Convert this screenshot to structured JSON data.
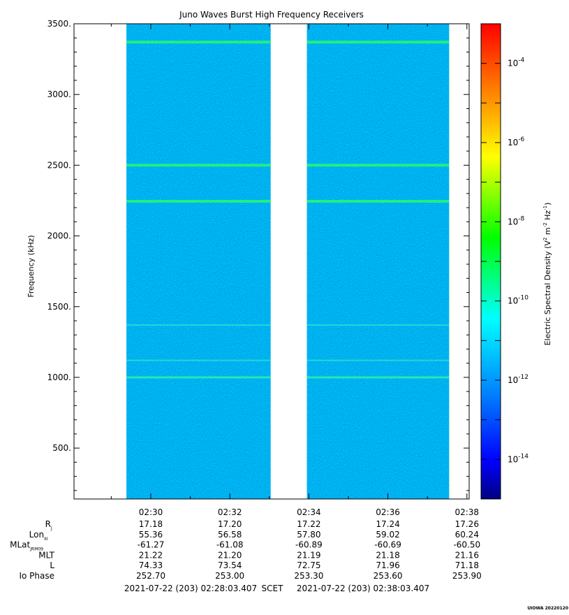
{
  "title": "Juno Waves Burst High Frequency Receivers",
  "watermark": "UIOWA 20220120",
  "chart_data": {
    "type": "heatmap",
    "title": "Juno Waves Burst High Frequency Receivers",
    "ylabel": "Frequency (kHz)",
    "ylim": [
      140,
      3500
    ],
    "y_ticks": [
      "500.",
      "1000.",
      "1500.",
      "2000.",
      "2500.",
      "3000.",
      "3500."
    ],
    "x_range": [
      "02:28:03.407",
      "02:38:03.407"
    ],
    "x_ticks": [
      "02:30",
      "02:32",
      "02:34",
      "02:36",
      "02:38"
    ],
    "data_segments": [
      {
        "start": "02:29:23",
        "end": "02:33:02"
      },
      {
        "start": "02:33:57",
        "end": "02:37:33"
      }
    ],
    "spectral_lines_khz": [
      {
        "freq": 3370,
        "level": "strong"
      },
      {
        "freq": 2500,
        "level": "strong"
      },
      {
        "freq": 2245,
        "level": "strong"
      },
      {
        "freq": 1370,
        "level": "faint"
      },
      {
        "freq": 1120,
        "level": "faint"
      },
      {
        "freq": 1000,
        "level": "medium"
      }
    ],
    "background_level": "1e-12",
    "colorbar": {
      "label": "Electric Spectral Density (V² m⁻² Hz⁻¹)",
      "label_plain": "Electric Spectral Density (V",
      "scale": "log",
      "range": [
        1e-15,
        0.001
      ],
      "tick_exponents": [
        "-4",
        "-6",
        "-8",
        "-10",
        "-12",
        "-14"
      ],
      "tick_base": "10",
      "colors": [
        "#000080",
        "#0000ff",
        "#0080ff",
        "#00ffff",
        "#00ff00",
        "#ffff00",
        "#ff8000",
        "#ff0000"
      ]
    },
    "ephemeris": {
      "rows": [
        {
          "label": "R",
          "sub": "J",
          "values": [
            "17.18",
            "17.20",
            "17.22",
            "17.24",
            "17.26"
          ]
        },
        {
          "label": "Lon",
          "sub": "III",
          "values": [
            "55.36",
            "56.58",
            "57.80",
            "59.02",
            "60.24"
          ]
        },
        {
          "label": "MLat",
          "sub": "JRM09",
          "values": [
            "-61.27",
            "-61.08",
            "-60.89",
            "-60.69",
            "-60.50"
          ]
        },
        {
          "label": "MLT",
          "sub": "",
          "values": [
            "21.22",
            "21.20",
            "21.19",
            "21.18",
            "21.16"
          ]
        },
        {
          "label": "L",
          "sub": "",
          "values": [
            "74.33",
            "73.54",
            "72.75",
            "71.96",
            "71.18"
          ]
        },
        {
          "label": "Io Phase",
          "sub": "",
          "values": [
            "252.70",
            "253.00",
            "253.30",
            "253.60",
            "253.90"
          ]
        }
      ]
    },
    "time_footer": {
      "start": "2021-07-22 (203) 02:28:03.407",
      "frame": "SCET",
      "end": "2021-07-22 (203) 02:38:03.407"
    }
  }
}
